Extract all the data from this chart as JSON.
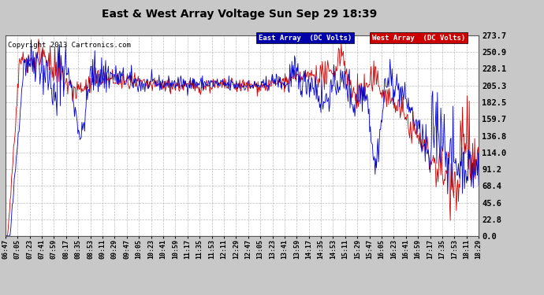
{
  "title": "East & West Array Voltage Sun Sep 29 18:39",
  "copyright": "Copyright 2013 Cartronics.com",
  "legend_east": "East Array  (DC Volts)",
  "legend_west": "West Array  (DC Volts)",
  "east_color": "#0000cc",
  "west_color": "#cc0000",
  "east_legend_bg": "#0000aa",
  "west_legend_bg": "#cc0000",
  "bg_color": "#c8c8c8",
  "plot_bg_color": "#ffffff",
  "grid_color": "#bbbbbb",
  "ymin": 0.0,
  "ymax": 273.7,
  "yticks": [
    0.0,
    22.8,
    45.6,
    68.4,
    91.2,
    114.0,
    136.8,
    159.7,
    182.5,
    205.3,
    228.1,
    250.9,
    273.7
  ],
  "num_points": 700,
  "x_tick_labels": [
    "06:47",
    "07:05",
    "07:23",
    "07:41",
    "07:59",
    "08:17",
    "08:35",
    "08:53",
    "09:11",
    "09:29",
    "09:47",
    "10:05",
    "10:23",
    "10:41",
    "10:59",
    "11:17",
    "11:35",
    "11:53",
    "12:11",
    "12:29",
    "12:47",
    "13:05",
    "13:23",
    "13:41",
    "13:59",
    "14:17",
    "14:35",
    "14:53",
    "15:11",
    "15:29",
    "15:47",
    "16:05",
    "16:23",
    "16:41",
    "16:59",
    "17:17",
    "17:35",
    "17:53",
    "18:11",
    "18:29"
  ]
}
